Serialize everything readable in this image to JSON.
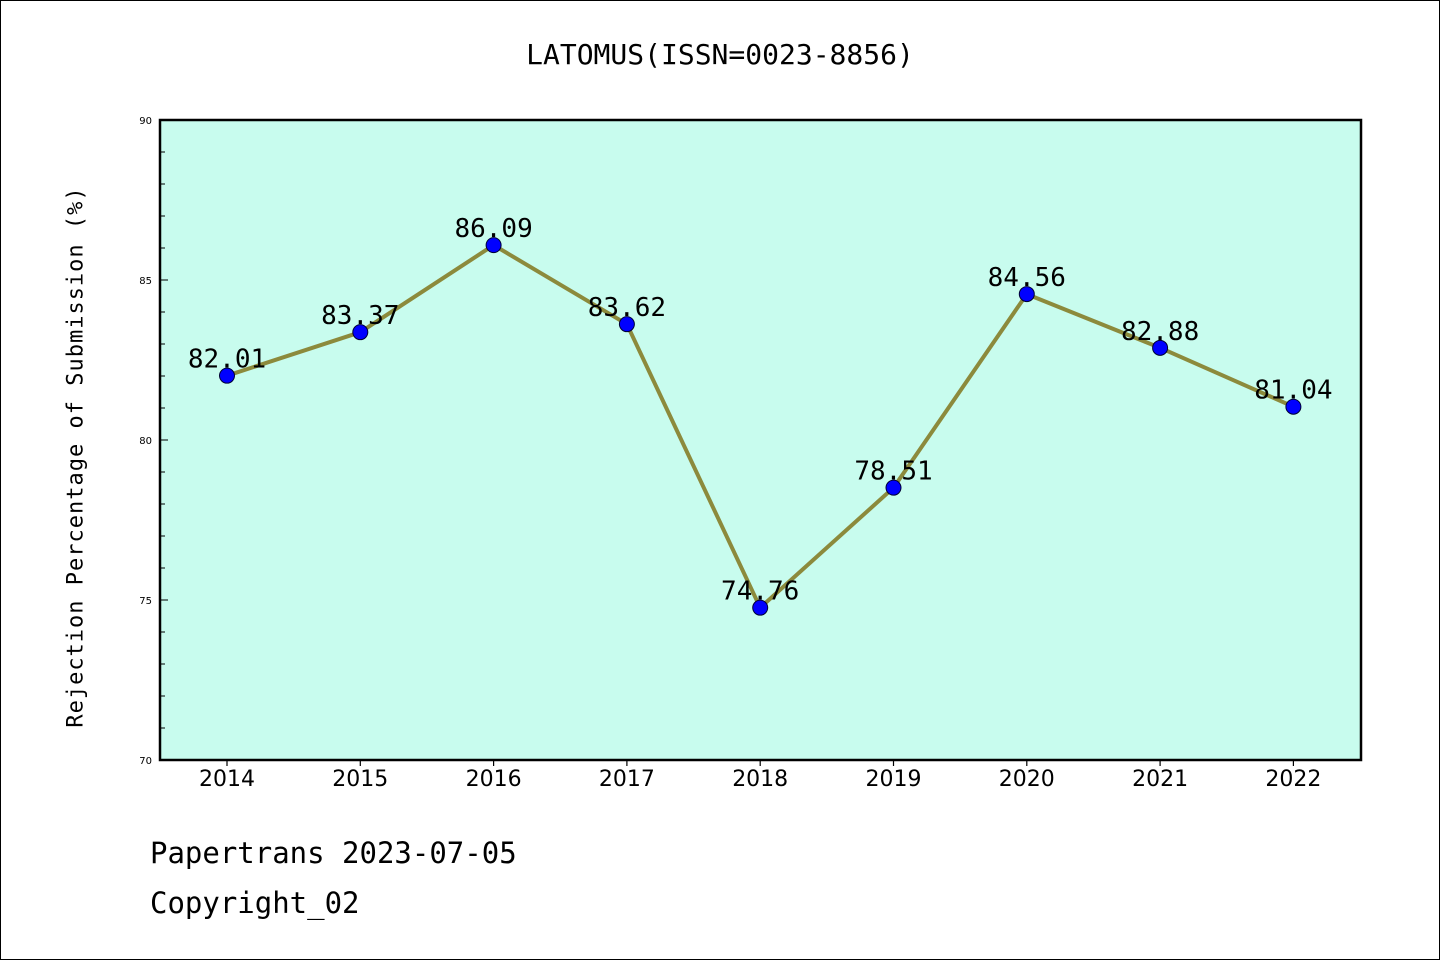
{
  "chart_data": {
    "type": "line",
    "title": "LATOMUS(ISSN=0023-8856)",
    "xlabel": "",
    "ylabel": "Rejection Percentage of Submission (%)",
    "categories": [
      "2014",
      "2015",
      "2016",
      "2017",
      "2018",
      "2019",
      "2020",
      "2021",
      "2022"
    ],
    "series": [
      {
        "values": [
          82.01,
          83.37,
          86.09,
          83.62,
          74.76,
          78.51,
          84.56,
          82.88,
          81.04
        ],
        "data_labels": [
          "82.01",
          "83.37",
          "86.09",
          "83.62",
          "74.76",
          "78.51",
          "84.56",
          "82.88",
          "81.04"
        ],
        "line_color": "#8c8a3c",
        "marker_color": "#0000ff"
      }
    ],
    "ylim": [
      70,
      90
    ],
    "y_ticks": [
      "70",
      "75",
      "80",
      "85",
      "90"
    ],
    "plot_background": "#c8fcee",
    "grid": false,
    "legend": "none"
  },
  "footer": {
    "line1": "Papertrans 2023-07-05",
    "line2": "Copyright_02"
  }
}
